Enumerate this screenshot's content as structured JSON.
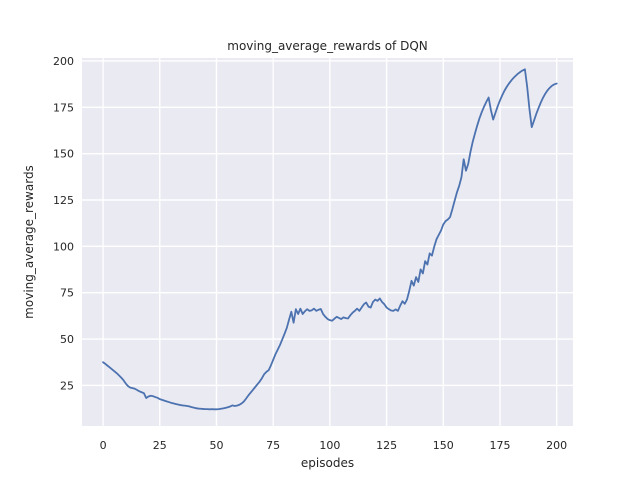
{
  "chart_data": {
    "type": "line",
    "title": "moving_average_rewards of DQN",
    "xlabel": "episodes",
    "ylabel": "moving_average_rewards",
    "xlim": [
      -9.3,
      207.2
    ],
    "ylim": [
      3.1,
      201.6
    ],
    "xticks": [
      0,
      25,
      50,
      75,
      100,
      125,
      150,
      175,
      200
    ],
    "yticks": [
      25,
      50,
      75,
      100,
      125,
      150,
      175,
      200
    ],
    "xtick_labels": [
      "0",
      "25",
      "50",
      "75",
      "100",
      "125",
      "150",
      "175",
      "200"
    ],
    "ytick_labels": [
      "25",
      "50",
      "75",
      "100",
      "125",
      "150",
      "175",
      "200"
    ],
    "grid": true,
    "legend": "none",
    "colors": {
      "line": "#4c72b0",
      "plot_background": "#eaeaf2",
      "figure_background": "#ffffff",
      "gridline": "#ffffff",
      "text": "#262626"
    },
    "series": [
      {
        "name": "DQN moving_average_rewards",
        "points": [
          [
            0,
            37.5
          ],
          [
            1,
            36.6
          ],
          [
            2,
            35.6
          ],
          [
            3,
            34.6
          ],
          [
            4,
            33.6
          ],
          [
            5,
            32.6
          ],
          [
            6,
            31.6
          ],
          [
            7,
            30.4
          ],
          [
            8,
            29.2
          ],
          [
            9,
            27.8
          ],
          [
            10,
            26.0
          ],
          [
            11,
            24.6
          ],
          [
            12,
            23.8
          ],
          [
            13,
            23.5
          ],
          [
            14,
            23.2
          ],
          [
            15,
            22.5
          ],
          [
            16,
            21.8
          ],
          [
            17,
            21.3
          ],
          [
            18,
            20.8
          ],
          [
            19,
            18.2
          ],
          [
            20,
            19.0
          ],
          [
            21,
            19.4
          ],
          [
            22,
            19.2
          ],
          [
            23,
            18.7
          ],
          [
            24,
            18.3
          ],
          [
            25,
            17.6
          ],
          [
            26,
            17.2
          ],
          [
            27,
            16.8
          ],
          [
            28,
            16.4
          ],
          [
            29,
            16.0
          ],
          [
            30,
            15.6
          ],
          [
            31,
            15.3
          ],
          [
            32,
            15.0
          ],
          [
            33,
            14.7
          ],
          [
            34,
            14.4
          ],
          [
            35,
            14.2
          ],
          [
            36,
            14.1
          ],
          [
            37,
            13.9
          ],
          [
            38,
            13.7
          ],
          [
            39,
            13.3
          ],
          [
            40,
            13.0
          ],
          [
            41,
            12.7
          ],
          [
            42,
            12.5
          ],
          [
            43,
            12.4
          ],
          [
            44,
            12.3
          ],
          [
            45,
            12.2
          ],
          [
            46,
            12.2
          ],
          [
            47,
            12.1
          ],
          [
            48,
            12.2
          ],
          [
            49,
            12.1
          ],
          [
            50,
            12.1
          ],
          [
            51,
            12.2
          ],
          [
            52,
            12.4
          ],
          [
            53,
            12.6
          ],
          [
            54,
            12.9
          ],
          [
            55,
            13.2
          ],
          [
            56,
            13.6
          ],
          [
            57,
            14.2
          ],
          [
            58,
            13.9
          ],
          [
            59,
            14.1
          ],
          [
            60,
            14.5
          ],
          [
            61,
            15.2
          ],
          [
            62,
            16.2
          ],
          [
            63,
            17.8
          ],
          [
            64,
            19.5
          ],
          [
            65,
            21.0
          ],
          [
            66,
            22.5
          ],
          [
            67,
            24.0
          ],
          [
            68,
            25.5
          ],
          [
            69,
            27.0
          ],
          [
            70,
            28.8
          ],
          [
            71,
            31.0
          ],
          [
            72,
            32.3
          ],
          [
            73,
            33.2
          ],
          [
            74,
            35.8
          ],
          [
            75,
            38.8
          ],
          [
            76,
            41.8
          ],
          [
            77,
            44.3
          ],
          [
            78,
            46.8
          ],
          [
            79,
            49.8
          ],
          [
            80,
            52.8
          ],
          [
            81,
            56.0
          ],
          [
            82,
            60.5
          ],
          [
            83,
            64.7
          ],
          [
            84,
            58.8
          ],
          [
            85,
            66.1
          ],
          [
            86,
            63.5
          ],
          [
            87,
            66.4
          ],
          [
            88,
            63.5
          ],
          [
            89,
            65.0
          ],
          [
            90,
            66.1
          ],
          [
            91,
            65.2
          ],
          [
            92,
            65.5
          ],
          [
            93,
            66.4
          ],
          [
            94,
            65.2
          ],
          [
            95,
            65.8
          ],
          [
            96,
            66.2
          ],
          [
            97,
            63.5
          ],
          [
            98,
            62.0
          ],
          [
            99,
            60.8
          ],
          [
            100,
            60.2
          ],
          [
            101,
            59.9
          ],
          [
            102,
            61.0
          ],
          [
            103,
            62.0
          ],
          [
            104,
            61.4
          ],
          [
            105,
            60.8
          ],
          [
            106,
            61.7
          ],
          [
            107,
            61.3
          ],
          [
            108,
            61.1
          ],
          [
            109,
            62.8
          ],
          [
            110,
            64.2
          ],
          [
            111,
            65.2
          ],
          [
            112,
            66.4
          ],
          [
            113,
            65.2
          ],
          [
            114,
            67.0
          ],
          [
            115,
            68.8
          ],
          [
            116,
            69.7
          ],
          [
            117,
            67.5
          ],
          [
            118,
            67.0
          ],
          [
            119,
            70.0
          ],
          [
            120,
            71.3
          ],
          [
            121,
            70.6
          ],
          [
            122,
            71.9
          ],
          [
            123,
            70.0
          ],
          [
            124,
            68.8
          ],
          [
            125,
            67.0
          ],
          [
            126,
            66.1
          ],
          [
            127,
            65.4
          ],
          [
            128,
            65.2
          ],
          [
            129,
            66.0
          ],
          [
            130,
            65.2
          ],
          [
            131,
            68.0
          ],
          [
            132,
            70.4
          ],
          [
            133,
            69.0
          ],
          [
            134,
            71.3
          ],
          [
            135,
            76.0
          ],
          [
            136,
            81.4
          ],
          [
            137,
            78.8
          ],
          [
            138,
            83.4
          ],
          [
            139,
            80.8
          ],
          [
            140,
            87.6
          ],
          [
            141,
            85.4
          ],
          [
            142,
            92.0
          ],
          [
            143,
            90.2
          ],
          [
            144,
            96.2
          ],
          [
            145,
            95.0
          ],
          [
            146,
            99.8
          ],
          [
            147,
            103.8
          ],
          [
            148,
            106.2
          ],
          [
            149,
            108.5
          ],
          [
            150,
            111.8
          ],
          [
            151,
            113.6
          ],
          [
            152,
            114.5
          ],
          [
            153,
            115.8
          ],
          [
            154,
            120.0
          ],
          [
            155,
            124.6
          ],
          [
            156,
            129.0
          ],
          [
            157,
            132.6
          ],
          [
            158,
            137.2
          ],
          [
            159,
            147.0
          ],
          [
            160,
            140.8
          ],
          [
            161,
            144.5
          ],
          [
            162,
            151.0
          ],
          [
            163,
            156.5
          ],
          [
            164,
            161.0
          ],
          [
            165,
            165.3
          ],
          [
            166,
            169.2
          ],
          [
            167,
            172.5
          ],
          [
            168,
            175.4
          ],
          [
            169,
            178.0
          ],
          [
            170,
            180.3
          ],
          [
            171,
            173.5
          ],
          [
            172,
            168.4
          ],
          [
            173,
            172.0
          ],
          [
            174,
            175.6
          ],
          [
            175,
            178.7
          ],
          [
            176,
            181.5
          ],
          [
            177,
            184.0
          ],
          [
            178,
            186.1
          ],
          [
            179,
            187.9
          ],
          [
            180,
            189.5
          ],
          [
            181,
            190.9
          ],
          [
            182,
            192.1
          ],
          [
            183,
            193.2
          ],
          [
            184,
            194.1
          ],
          [
            185,
            194.9
          ],
          [
            186,
            195.5
          ],
          [
            187,
            186.0
          ],
          [
            188,
            174.0
          ],
          [
            189,
            164.3
          ],
          [
            190,
            167.8
          ],
          [
            191,
            171.4
          ],
          [
            192,
            174.6
          ],
          [
            193,
            177.6
          ],
          [
            194,
            180.2
          ],
          [
            195,
            182.4
          ],
          [
            196,
            184.2
          ],
          [
            197,
            185.6
          ],
          [
            198,
            186.7
          ],
          [
            199,
            187.4
          ],
          [
            200,
            187.8
          ]
        ]
      }
    ]
  }
}
